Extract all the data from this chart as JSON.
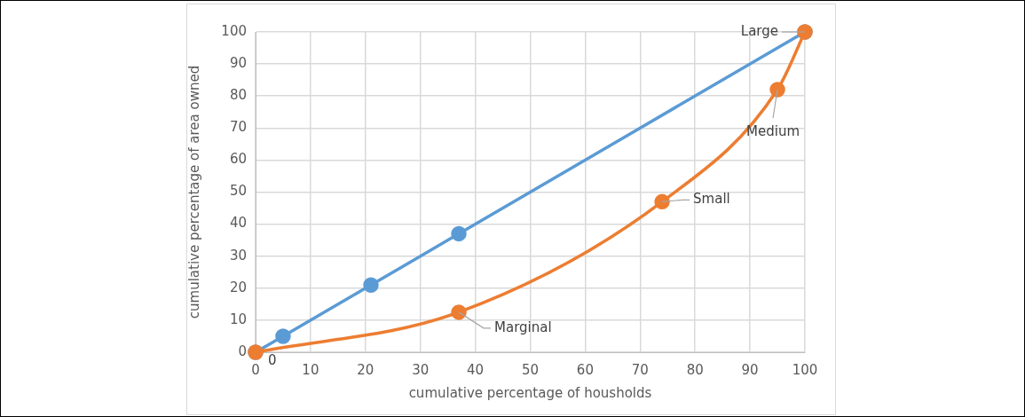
{
  "chart_data": {
    "type": "line",
    "xlabel": "cumulative percentage of housholds",
    "ylabel": "cumulative percentage of area owned",
    "xlim": [
      0,
      100
    ],
    "xticks": [
      0,
      10,
      20,
      30,
      40,
      50,
      60,
      70,
      80,
      90,
      100
    ],
    "ylim": [
      0,
      100
    ],
    "yticks": [
      0,
      10,
      20,
      30,
      40,
      50,
      60,
      70,
      80,
      90,
      100
    ],
    "grid": true,
    "legend": false,
    "marker": "circle",
    "line_style": "solid",
    "series": [
      {
        "color": "#5b9bd5",
        "x": [
          0,
          5,
          21,
          37,
          100
        ],
        "values": [
          0,
          5,
          21,
          37,
          100
        ]
      },
      {
        "color": "#ed7d31",
        "x": [
          0,
          37,
          74,
          95,
          100
        ],
        "values": [
          0,
          12.5,
          47,
          82,
          100
        ]
      }
    ],
    "annotations": [
      {
        "text": "0",
        "x": 0,
        "y": 0
      },
      {
        "text": "Marginal",
        "x": 37,
        "y": 12.5
      },
      {
        "text": "Small",
        "x": 74,
        "y": 47
      },
      {
        "text": "Medium",
        "x": 95,
        "y": 82
      },
      {
        "text": "Large",
        "x": 100,
        "y": 100
      }
    ]
  }
}
